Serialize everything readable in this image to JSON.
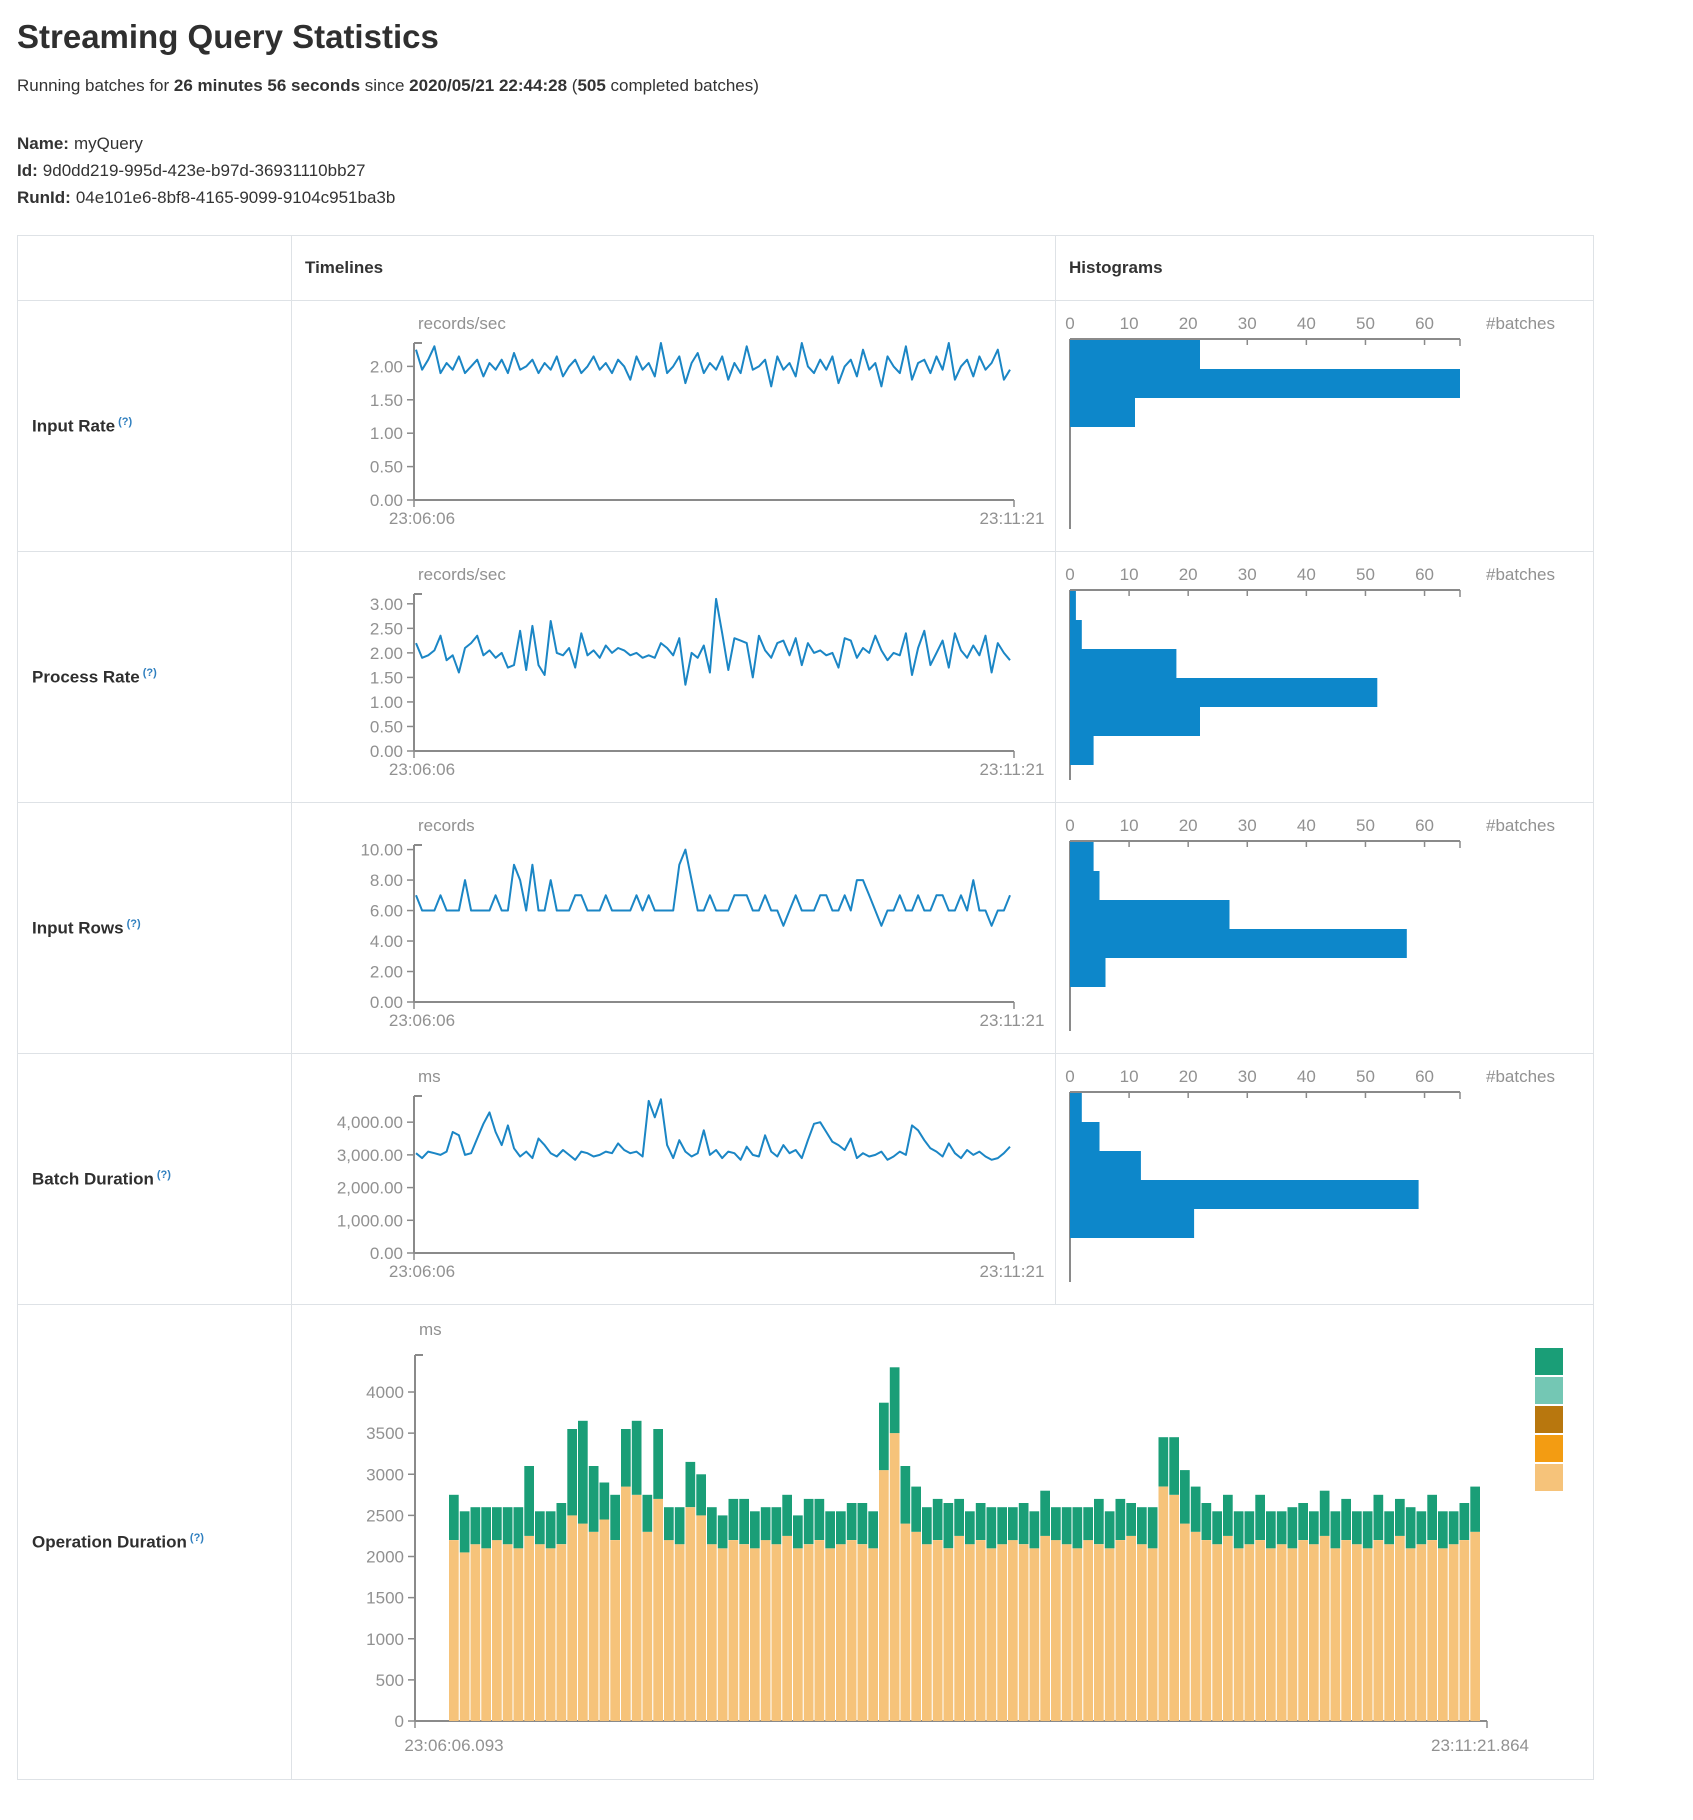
{
  "page": {
    "title": "Streaming Query Statistics",
    "subtitle": {
      "prefix": "Running batches for ",
      "duration": "26 minutes 56 seconds",
      "mid": " since ",
      "since": "2020/05/21 22:44:28",
      "open_paren": "(",
      "batch_count": "505",
      "suffix": " completed batches)"
    },
    "name_label": "Name:",
    "name_value": "myQuery",
    "id_label": "Id:",
    "id_value": "9d0dd219-995d-423e-b97d-36931110bb27",
    "runid_label": "RunId:",
    "runid_value": "04e101e6-8bf8-4165-9099-9104c951ba3b"
  },
  "table": {
    "col_timelines": "Timelines",
    "col_histograms": "Histograms",
    "rows": [
      {
        "label": "Input Rate",
        "help": "(?)"
      },
      {
        "label": "Process Rate",
        "help": "(?)"
      },
      {
        "label": "Input Rows",
        "help": "(?)"
      },
      {
        "label": "Batch Duration",
        "help": "(?)"
      },
      {
        "label": "Operation Duration",
        "help": "(?)"
      }
    ]
  },
  "colors": {
    "line": "#1b86c5",
    "bar": "#0d87ca",
    "axis": "#8a8a8a",
    "tick_text": "#919191",
    "legend": [
      "#1a9e77",
      "#74c7b4",
      "#b8770e",
      "#f39c12",
      "#f6c37a"
    ]
  },
  "chart_data": [
    {
      "id": "input-rate-timeline",
      "type": "line",
      "unit": "records/sec",
      "x_start": "23:06:06",
      "x_end": "23:11:21",
      "y_ticks": [
        0,
        0.5,
        1,
        1.5,
        2
      ],
      "y_tick_labels": [
        "0.00",
        "0.50",
        "1.00",
        "1.50",
        "2.00"
      ],
      "y_max": 2.35,
      "values": [
        2.25,
        1.95,
        2.1,
        2.3,
        1.9,
        2.05,
        1.95,
        2.15,
        1.9,
        2.0,
        2.1,
        1.85,
        2.05,
        1.95,
        2.1,
        1.9,
        2.2,
        1.95,
        2.0,
        2.1,
        1.9,
        2.05,
        1.95,
        2.15,
        1.85,
        2.0,
        2.1,
        1.9,
        2.0,
        2.15,
        1.95,
        2.05,
        1.9,
        2.1,
        2.0,
        1.8,
        2.15,
        1.95,
        2.05,
        1.85,
        2.35,
        1.9,
        2.0,
        2.15,
        1.75,
        2.05,
        2.2,
        1.9,
        2.05,
        1.95,
        2.15,
        1.8,
        2.05,
        1.9,
        2.3,
        1.95,
        2.0,
        2.1,
        1.7,
        2.15,
        1.95,
        2.05,
        1.85,
        2.35,
        2.0,
        1.9,
        2.1,
        1.95,
        2.15,
        1.75,
        2.0,
        2.1,
        1.85,
        2.25,
        1.95,
        2.05,
        1.7,
        2.15,
        2.0,
        1.9,
        2.3,
        1.8,
        2.05,
        2.1,
        1.9,
        2.15,
        1.95,
        2.35,
        1.8,
        2.0,
        2.1,
        1.85,
        2.15,
        1.95,
        2.05,
        2.25,
        1.8,
        1.95
      ]
    },
    {
      "id": "input-rate-histogram",
      "type": "bar",
      "xlabel": "#batches",
      "x_ticks": [
        0,
        10,
        20,
        30,
        40,
        50,
        60
      ],
      "x_max": 66,
      "values": [
        22,
        66,
        11
      ]
    },
    {
      "id": "process-rate-timeline",
      "type": "line",
      "unit": "records/sec",
      "x_start": "23:06:06",
      "x_end": "23:11:21",
      "y_ticks": [
        0,
        0.5,
        1,
        1.5,
        2,
        2.5,
        3
      ],
      "y_tick_labels": [
        "0.00",
        "0.50",
        "1.00",
        "1.50",
        "2.00",
        "2.50",
        "3.00"
      ],
      "y_max": 3.2,
      "values": [
        2.2,
        1.9,
        1.95,
        2.05,
        2.35,
        1.85,
        1.95,
        1.6,
        2.1,
        2.2,
        2.35,
        1.95,
        2.05,
        1.9,
        2.0,
        1.7,
        1.75,
        2.45,
        1.65,
        2.55,
        1.75,
        1.55,
        2.65,
        2.0,
        1.95,
        2.1,
        1.7,
        2.4,
        1.95,
        2.05,
        1.9,
        2.15,
        2.0,
        2.1,
        2.05,
        1.95,
        2.0,
        1.9,
        1.95,
        1.9,
        2.2,
        2.1,
        1.95,
        2.3,
        1.35,
        2.0,
        1.9,
        2.15,
        1.6,
        3.1,
        2.4,
        1.65,
        2.3,
        2.25,
        2.2,
        1.5,
        2.35,
        2.05,
        1.9,
        2.2,
        2.25,
        1.95,
        2.3,
        1.75,
        2.2,
        2.0,
        2.05,
        1.95,
        2.0,
        1.7,
        2.3,
        2.25,
        1.9,
        2.1,
        2.0,
        2.35,
        2.05,
        1.85,
        2.0,
        1.95,
        2.4,
        1.55,
        2.1,
        2.45,
        1.75,
        2.0,
        2.25,
        1.7,
        2.4,
        2.05,
        1.9,
        2.15,
        1.95,
        2.35,
        1.6,
        2.2,
        2.0,
        1.85
      ]
    },
    {
      "id": "process-rate-histogram",
      "type": "bar",
      "xlabel": "#batches",
      "x_ticks": [
        0,
        10,
        20,
        30,
        40,
        50,
        60
      ],
      "x_max": 66,
      "values": [
        1,
        2,
        18,
        52,
        22,
        4
      ]
    },
    {
      "id": "input-rows-timeline",
      "type": "line",
      "unit": "records",
      "x_start": "23:06:06",
      "x_end": "23:11:21",
      "y_ticks": [
        0,
        2,
        4,
        6,
        8,
        10
      ],
      "y_tick_labels": [
        "0.00",
        "2.00",
        "4.00",
        "6.00",
        "8.00",
        "10.00"
      ],
      "y_max": 10.3,
      "values": [
        7,
        6,
        6,
        6,
        7,
        6,
        6,
        6,
        8,
        6,
        6,
        6,
        6,
        7,
        6,
        6,
        9,
        8,
        6,
        9,
        6,
        6,
        8,
        6,
        6,
        6,
        7,
        7,
        6,
        6,
        6,
        7,
        6,
        6,
        6,
        6,
        7,
        6,
        7,
        6,
        6,
        6,
        6,
        9,
        10,
        8,
        6,
        6,
        7,
        6,
        6,
        6,
        7,
        7,
        7,
        6,
        6,
        7,
        6,
        6,
        5,
        6,
        7,
        6,
        6,
        6,
        7,
        7,
        6,
        6,
        7,
        6,
        8,
        8,
        7,
        6,
        5,
        6,
        6,
        7,
        6,
        6,
        7,
        6,
        6,
        7,
        7,
        6,
        6,
        7,
        6,
        8,
        6,
        6,
        5,
        6,
        6,
        7
      ]
    },
    {
      "id": "input-rows-histogram",
      "type": "bar",
      "xlabel": "#batches",
      "x_ticks": [
        0,
        10,
        20,
        30,
        40,
        50,
        60
      ],
      "x_max": 66,
      "values": [
        4,
        5,
        27,
        57,
        6
      ]
    },
    {
      "id": "batch-duration-timeline",
      "type": "line",
      "unit": "ms",
      "x_start": "23:06:06",
      "x_end": "23:11:21",
      "y_ticks": [
        0,
        1000,
        2000,
        3000,
        4000
      ],
      "y_tick_labels": [
        "0.00",
        "1,000.00",
        "2,000.00",
        "3,000.00",
        "4,000.00"
      ],
      "y_max": 4800,
      "values": [
        3050,
        2900,
        3100,
        3050,
        3000,
        3100,
        3700,
        3600,
        3000,
        3050,
        3500,
        3950,
        4300,
        3700,
        3300,
        3900,
        3200,
        2950,
        3100,
        2900,
        3500,
        3300,
        3050,
        2950,
        3150,
        3000,
        2850,
        3100,
        3050,
        2950,
        3000,
        3100,
        3050,
        3350,
        3150,
        3050,
        3100,
        2950,
        4650,
        4150,
        4700,
        3300,
        2900,
        3450,
        3100,
        2950,
        3050,
        3750,
        3000,
        3150,
        2900,
        3100,
        3050,
        2850,
        3250,
        3000,
        2950,
        3600,
        3100,
        2950,
        3300,
        3050,
        3150,
        2900,
        3450,
        3950,
        4000,
        3700,
        3400,
        3300,
        3150,
        3500,
        2900,
        3050,
        2950,
        3000,
        3100,
        2850,
        2950,
        3100,
        3000,
        3900,
        3750,
        3450,
        3200,
        3100,
        2950,
        3350,
        3050,
        2900,
        3150,
        3000,
        3100,
        2950,
        2850,
        2900,
        3050,
        3250
      ]
    },
    {
      "id": "batch-duration-histogram",
      "type": "bar",
      "xlabel": "#batches",
      "x_ticks": [
        0,
        10,
        20,
        30,
        40,
        50,
        60
      ],
      "x_max": 66,
      "values": [
        2,
        5,
        12,
        59,
        21
      ]
    },
    {
      "id": "operation-duration",
      "type": "stacked-bar",
      "unit": "ms",
      "x_start": "23:06:06.093",
      "x_end": "23:11:21.864",
      "y_ticks": [
        0,
        500,
        1000,
        1500,
        2000,
        2500,
        3000,
        3500,
        4000
      ],
      "y_tick_labels": [
        "0",
        "500",
        "1000",
        "1500",
        "2000",
        "2500",
        "3000",
        "3500",
        "4000"
      ],
      "y_max": 4450,
      "bottom": {
        "color": "#f6c37a",
        "values": [
          2200,
          2050,
          2150,
          2100,
          2200,
          2150,
          2100,
          2250,
          2150,
          2100,
          2150,
          2500,
          2400,
          2300,
          2450,
          2200,
          2850,
          2750,
          2300,
          2700,
          2200,
          2150,
          2600,
          2500,
          2150,
          2100,
          2200,
          2150,
          2100,
          2200,
          2150,
          2250,
          2100,
          2150,
          2200,
          2100,
          2150,
          2200,
          2150,
          2100,
          3050,
          3500,
          2400,
          2300,
          2150,
          2200,
          2100,
          2250,
          2150,
          2200,
          2100,
          2150,
          2200,
          2150,
          2100,
          2250,
          2200,
          2150,
          2100,
          2200,
          2150,
          2100,
          2200,
          2250,
          2150,
          2100,
          2850,
          2750,
          2400,
          2300,
          2200,
          2150,
          2250,
          2100,
          2150,
          2200,
          2100,
          2150,
          2100,
          2200,
          2150,
          2250,
          2100,
          2200,
          2150,
          2100,
          2200,
          2150,
          2250,
          2100,
          2150,
          2200,
          2100,
          2150,
          2200,
          2300
        ]
      },
      "top": {
        "color": "#1a9e77",
        "values": [
          550,
          500,
          450,
          500,
          400,
          450,
          500,
          850,
          400,
          450,
          500,
          1050,
          1250,
          800,
          450,
          550,
          700,
          900,
          450,
          850,
          400,
          450,
          550,
          500,
          450,
          400,
          500,
          550,
          450,
          400,
          450,
          500,
          400,
          550,
          500,
          450,
          400,
          450,
          500,
          450,
          820,
          800,
          700,
          550,
          450,
          500,
          550,
          450,
          400,
          450,
          500,
          450,
          400,
          500,
          450,
          550,
          400,
          450,
          500,
          400,
          550,
          450,
          500,
          400,
          450,
          500,
          600,
          700,
          650,
          550,
          450,
          400,
          500,
          450,
          400,
          550,
          450,
          400,
          500,
          450,
          400,
          550,
          450,
          500,
          400,
          450,
          550,
          400,
          450,
          500,
          400,
          550,
          450,
          400,
          450,
          550
        ]
      },
      "legend_colors": [
        "#1a9e77",
        "#74c7b4",
        "#b8770e",
        "#f39c12",
        "#f6c37a"
      ]
    }
  ]
}
